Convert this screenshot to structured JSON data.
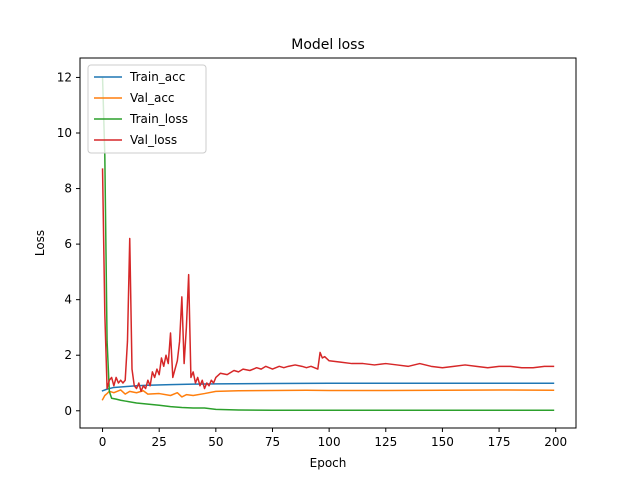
{
  "chart_data": {
    "type": "line",
    "title": "Model loss",
    "xlabel": "Epoch",
    "ylabel": "Loss",
    "xlim": [
      -9.95,
      208.95
    ],
    "ylim": [
      -0.62,
      12.7
    ],
    "xticks": [
      0,
      25,
      50,
      75,
      100,
      125,
      150,
      175,
      200
    ],
    "yticks": [
      0,
      2,
      4,
      6,
      8,
      10,
      12
    ],
    "grid": false,
    "legend_position": "top-left",
    "series": [
      {
        "name": "Train_acc",
        "color": "#1f77b4",
        "x": [
          0,
          2,
          5,
          10,
          15,
          20,
          30,
          40,
          50,
          75,
          100,
          125,
          150,
          175,
          199
        ],
        "y": [
          0.72,
          0.78,
          0.84,
          0.87,
          0.9,
          0.92,
          0.94,
          0.96,
          0.97,
          0.98,
          0.99,
          0.99,
          0.99,
          0.99,
          0.99
        ]
      },
      {
        "name": "Val_acc",
        "color": "#ff7f0e",
        "x": [
          0,
          1,
          2,
          3,
          5,
          8,
          10,
          12,
          15,
          18,
          20,
          25,
          30,
          33,
          35,
          37,
          40,
          45,
          50,
          60,
          75,
          90,
          100,
          125,
          150,
          175,
          199
        ],
        "y": [
          0.4,
          0.55,
          0.62,
          0.7,
          0.65,
          0.75,
          0.6,
          0.7,
          0.65,
          0.72,
          0.6,
          0.62,
          0.55,
          0.65,
          0.5,
          0.58,
          0.55,
          0.62,
          0.7,
          0.72,
          0.73,
          0.74,
          0.73,
          0.73,
          0.74,
          0.75,
          0.74
        ]
      },
      {
        "name": "Train_loss",
        "color": "#2ca02c",
        "x": [
          0,
          1,
          2,
          3,
          4,
          6,
          8,
          10,
          15,
          20,
          25,
          30,
          35,
          40,
          45,
          50,
          60,
          75,
          100,
          125,
          150,
          175,
          199
        ],
        "y": [
          12.0,
          9.2,
          2.5,
          0.7,
          0.45,
          0.42,
          0.38,
          0.35,
          0.28,
          0.24,
          0.2,
          0.15,
          0.12,
          0.1,
          0.1,
          0.05,
          0.03,
          0.02,
          0.02,
          0.02,
          0.02,
          0.02,
          0.02
        ]
      },
      {
        "name": "Val_loss",
        "color": "#d62728",
        "x": [
          0,
          1,
          2,
          3,
          4,
          5,
          6,
          7,
          8,
          9,
          10,
          11,
          12,
          13,
          14,
          15,
          16,
          17,
          18,
          19,
          20,
          21,
          22,
          23,
          24,
          25,
          26,
          27,
          28,
          29,
          30,
          31,
          32,
          33,
          34,
          35,
          36,
          37,
          38,
          39,
          40,
          41,
          42,
          43,
          44,
          45,
          46,
          47,
          48,
          49,
          50,
          52,
          55,
          58,
          60,
          62,
          65,
          68,
          70,
          72,
          75,
          78,
          80,
          82,
          85,
          88,
          90,
          92,
          95,
          96,
          97,
          98,
          100,
          105,
          110,
          115,
          120,
          125,
          130,
          135,
          140,
          145,
          150,
          155,
          160,
          165,
          170,
          175,
          180,
          185,
          190,
          195,
          199
        ],
        "y": [
          8.7,
          3.5,
          0.8,
          1.1,
          1.2,
          0.9,
          1.2,
          1.0,
          1.1,
          1.0,
          1.1,
          2.5,
          6.2,
          1.5,
          0.9,
          0.8,
          1.0,
          0.7,
          0.9,
          0.8,
          1.1,
          0.9,
          1.4,
          1.2,
          1.5,
          1.3,
          1.9,
          1.6,
          2.0,
          1.7,
          2.8,
          1.2,
          1.5,
          1.8,
          2.5,
          4.1,
          1.7,
          3.0,
          4.9,
          1.2,
          1.4,
          1.0,
          1.2,
          0.9,
          1.1,
          0.8,
          1.0,
          0.9,
          1.1,
          1.0,
          1.2,
          1.35,
          1.3,
          1.45,
          1.4,
          1.5,
          1.45,
          1.55,
          1.5,
          1.6,
          1.5,
          1.6,
          1.55,
          1.6,
          1.65,
          1.6,
          1.55,
          1.6,
          1.5,
          2.1,
          1.9,
          1.95,
          1.8,
          1.75,
          1.7,
          1.7,
          1.65,
          1.7,
          1.65,
          1.6,
          1.7,
          1.6,
          1.55,
          1.6,
          1.65,
          1.6,
          1.55,
          1.6,
          1.6,
          1.55,
          1.55,
          1.6,
          1.6
        ]
      }
    ]
  }
}
